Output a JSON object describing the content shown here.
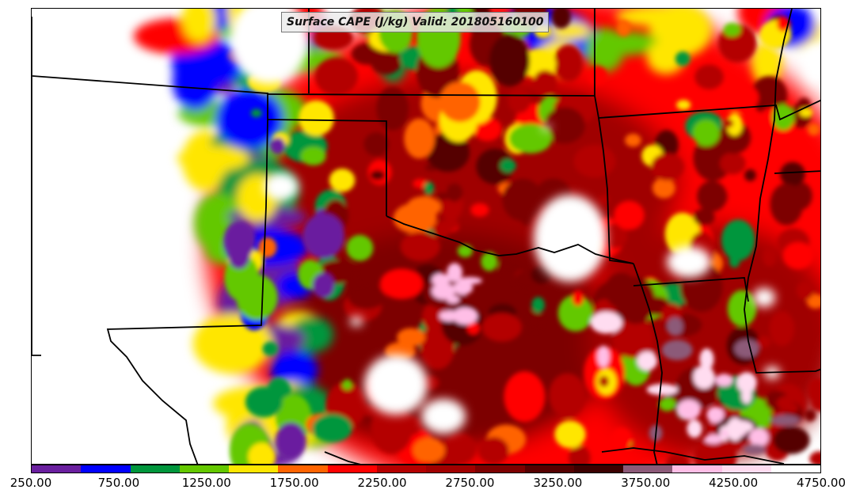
{
  "title": "Surface CAPE (J/kg) Valid: 201805160100",
  "colorbar": {
    "colors": [
      "#6a1f9f",
      "#0000ff",
      "#00963c",
      "#64c800",
      "#ffe600",
      "#ff6400",
      "#ff0000",
      "#b40000",
      "#a00000",
      "#7d0000",
      "#550000",
      "#3c0000",
      "#8c5a78",
      "#ffbee6",
      "#ffdcf0",
      "#ffffff"
    ],
    "tick_labels": [
      "250.00",
      "750.00",
      "1250.00",
      "1750.00",
      "2250.00",
      "2750.00",
      "3250.00",
      "3750.00",
      "4250.00",
      "4750.00"
    ],
    "tick_values": [
      250,
      750,
      1250,
      1750,
      2250,
      2750,
      3250,
      3750,
      4250,
      4750
    ],
    "range": [
      250,
      4750
    ]
  }
}
